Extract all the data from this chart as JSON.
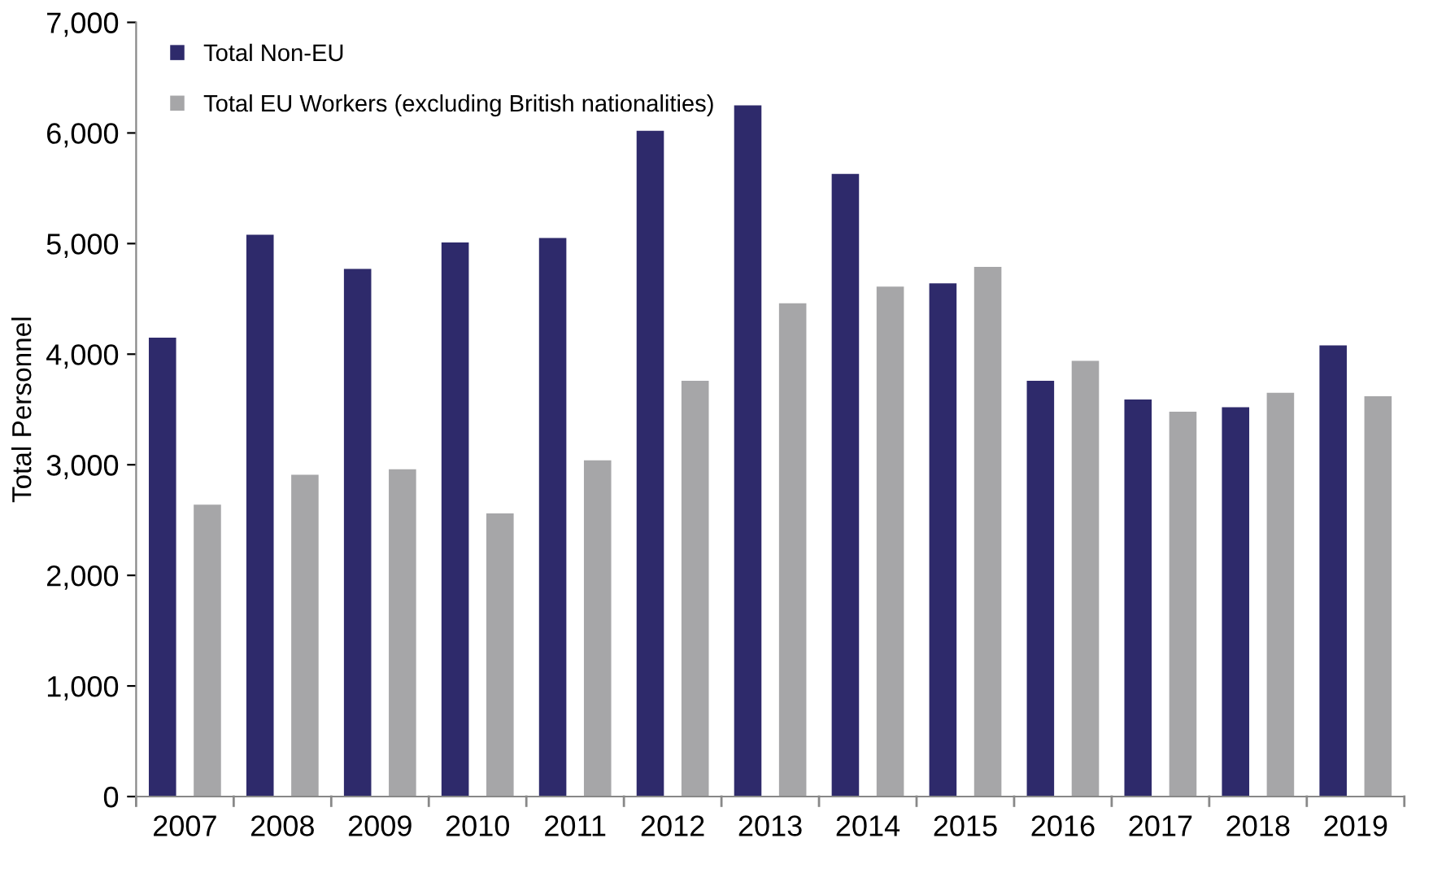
{
  "chart_data": {
    "type": "bar",
    "ylabel": "Total Personnel",
    "categories": [
      "2007",
      "2008",
      "2009",
      "2010",
      "2011",
      "2012",
      "2013",
      "2014",
      "2015",
      "2016",
      "2017",
      "2018",
      "2019"
    ],
    "series": [
      {
        "name": "Total Non-EU",
        "color": "#2e2a6b",
        "values": [
          4150,
          5080,
          4770,
          5010,
          5050,
          6020,
          6250,
          5630,
          4640,
          3760,
          3590,
          3520,
          4080
        ]
      },
      {
        "name": "Total EU Workers (excluding British nationalities)",
        "color": "#a6a6a8",
        "values": [
          2640,
          2910,
          2960,
          2560,
          3040,
          3760,
          4460,
          4610,
          4790,
          3940,
          3480,
          3650,
          3620
        ]
      }
    ],
    "ylim": [
      0,
      7000
    ],
    "yticks": [
      {
        "value": 0,
        "label": "0"
      },
      {
        "value": 1000,
        "label": "1,000"
      },
      {
        "value": 2000,
        "label": "2,000"
      },
      {
        "value": 3000,
        "label": "3,000"
      },
      {
        "value": 4000,
        "label": "4,000"
      },
      {
        "value": 5000,
        "label": "5,000"
      },
      {
        "value": 6000,
        "label": "6,000"
      },
      {
        "value": 7000,
        "label": "7,000"
      }
    ],
    "grid": false,
    "legend": "top left"
  }
}
